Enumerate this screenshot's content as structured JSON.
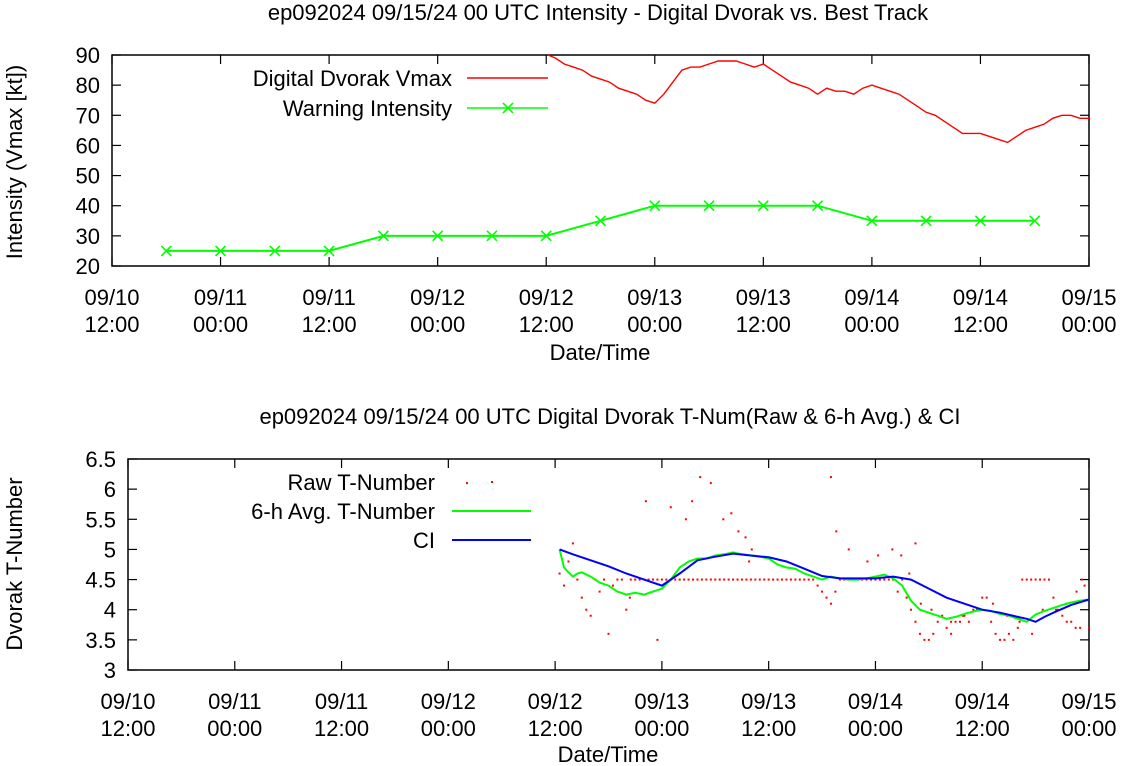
{
  "chart_data": [
    {
      "type": "line",
      "title": "ep092024 09/15/24  00 UTC Intensity - Digital Dvorak vs. Best Track",
      "xlabel": "Date/Time",
      "ylabel": "Intensity (Vmax [kt])",
      "xlim": [
        0,
        108
      ],
      "ylim": [
        20,
        90
      ],
      "x_unit": "hours since 09/10 12:00",
      "xticks": [
        {
          "x": 0,
          "l1": "09/10",
          "l2": "12:00"
        },
        {
          "x": 12,
          "l1": "09/11",
          "l2": "00:00"
        },
        {
          "x": 24,
          "l1": "09/11",
          "l2": "12:00"
        },
        {
          "x": 36,
          "l1": "09/12",
          "l2": "00:00"
        },
        {
          "x": 48,
          "l1": "09/12",
          "l2": "12:00"
        },
        {
          "x": 60,
          "l1": "09/13",
          "l2": "00:00"
        },
        {
          "x": 72,
          "l1": "09/13",
          "l2": "12:00"
        },
        {
          "x": 84,
          "l1": "09/14",
          "l2": "00:00"
        },
        {
          "x": 96,
          "l1": "09/14",
          "l2": "12:00"
        },
        {
          "x": 108,
          "l1": "09/15",
          "l2": "00:00"
        }
      ],
      "yticks": [
        "20",
        "30",
        "40",
        "50",
        "60",
        "70",
        "80",
        "90"
      ],
      "series": [
        {
          "name": "Digital Dvorak Vmax",
          "color": "#ff0000",
          "marker": "none",
          "x": [
            48.2,
            49,
            50,
            51,
            52,
            53,
            54,
            55,
            56,
            57,
            58,
            59,
            60,
            61,
            62,
            63,
            64,
            65,
            66,
            67,
            68,
            69,
            70,
            71,
            72,
            73,
            74,
            75,
            76,
            77,
            78,
            79,
            80,
            81,
            82,
            83,
            84,
            85,
            86,
            87,
            88,
            89,
            90,
            91,
            92,
            93,
            94,
            95,
            96,
            97,
            98,
            99,
            100,
            101,
            102,
            103,
            104,
            105,
            106,
            107,
            108
          ],
          "y": [
            90,
            89,
            87,
            86,
            85,
            83,
            82,
            81,
            79,
            78,
            77,
            75,
            74,
            77,
            81,
            85,
            86,
            86,
            87,
            88,
            88,
            88,
            87,
            86,
            87,
            85,
            83,
            81,
            80,
            79,
            77,
            79,
            78,
            78,
            77,
            79,
            80,
            79,
            78,
            77,
            75,
            73,
            71,
            70,
            68,
            66,
            64,
            64,
            64,
            63,
            62,
            61,
            63,
            65,
            66,
            67,
            69,
            70,
            70,
            69,
            69
          ]
        },
        {
          "name": "Warning Intensity",
          "color": "#00ff00",
          "marker": "x",
          "x": [
            6,
            12,
            18,
            24,
            30,
            36,
            42,
            48,
            54,
            60,
            66,
            72,
            78,
            84,
            90,
            96,
            102
          ],
          "y": [
            25,
            25,
            25,
            25,
            30,
            30,
            30,
            30,
            35,
            40,
            40,
            40,
            40,
            35,
            35,
            35,
            35
          ]
        }
      ]
    },
    {
      "type": "line",
      "title": "ep092024 09/15/24  00 UTC Digital Dvorak T-Num(Raw & 6-h Avg.) & CI",
      "xlabel": "Date/Time",
      "ylabel": "Dvorak T-Number",
      "xlim": [
        0,
        108
      ],
      "ylim": [
        3,
        6.5
      ],
      "x_unit": "hours since 09/10 12:00",
      "xticks": [
        {
          "x": 0,
          "l1": "09/10",
          "l2": "12:00"
        },
        {
          "x": 12,
          "l1": "09/11",
          "l2": "00:00"
        },
        {
          "x": 24,
          "l1": "09/11",
          "l2": "12:00"
        },
        {
          "x": 36,
          "l1": "09/12",
          "l2": "00:00"
        },
        {
          "x": 48,
          "l1": "09/12",
          "l2": "12:00"
        },
        {
          "x": 60,
          "l1": "09/13",
          "l2": "00:00"
        },
        {
          "x": 72,
          "l1": "09/13",
          "l2": "12:00"
        },
        {
          "x": 84,
          "l1": "09/14",
          "l2": "00:00"
        },
        {
          "x": 96,
          "l1": "09/14",
          "l2": "12:00"
        },
        {
          "x": 108,
          "l1": "09/15",
          "l2": "00:00"
        }
      ],
      "yticks": [
        "3",
        "3.5",
        "4",
        "4.5",
        "5",
        "5.5",
        "6",
        "6.5"
      ],
      "series": [
        {
          "name": "Raw T-Number",
          "color": "#ff0000",
          "marker": "dot",
          "x": [
            48.5,
            49,
            49.5,
            50,
            50.5,
            51,
            51.5,
            52,
            52.5,
            53,
            53.5,
            54,
            54.5,
            55,
            55.5,
            56,
            56.5,
            57,
            57.5,
            58,
            58.5,
            59,
            59.5,
            60,
            60.5,
            61,
            61.5,
            62,
            62.5,
            63,
            63.5,
            64,
            64.5,
            65,
            65.5,
            66,
            66.5,
            67,
            67.5,
            68,
            68.5,
            69,
            69.5,
            70,
            70.5,
            71,
            71.5,
            72,
            72.5,
            73,
            73.5,
            74,
            74.5,
            75,
            75.5,
            76,
            76.5,
            77,
            77.5,
            78,
            78.5,
            79,
            79.5,
            80,
            80.5,
            81,
            81.5,
            82,
            82.5,
            83,
            83.5,
            84,
            84.5,
            85,
            85.5,
            86,
            86.5,
            87,
            87.5,
            88,
            88.5,
            89,
            89.5,
            90,
            90.5,
            91,
            91.5,
            92,
            92.5,
            93,
            93.5,
            94,
            94.5,
            95,
            95.5,
            96,
            96.5,
            97,
            97.5,
            98,
            98.5,
            99,
            99.5,
            100,
            100.5,
            101,
            101.5,
            102,
            102.5,
            103,
            103.5,
            104,
            104.5,
            105,
            105.5,
            106,
            106.5,
            107,
            107.5,
            108,
            56.4,
            58.2,
            61,
            62.7,
            63.4,
            64.3,
            65.5,
            66.9,
            67.8,
            68.6,
            69.4,
            70.1,
            79,
            79.6,
            81,
            83.1,
            84.3,
            85.9,
            86.9,
            87.8,
            89.1,
            90.3,
            92.5,
            93.8,
            95.4,
            97.2,
            98.8,
            99.4,
            100.2,
            101.6,
            102.8,
            104.3,
            105.5,
            106.6,
            107.2,
            38.1,
            59.5,
            69.8,
            88.5
          ],
          "y": [
            4.6,
            4.4,
            4.8,
            5.1,
            4.5,
            4.2,
            4.0,
            3.9,
            4.5,
            4.3,
            4.5,
            3.6,
            4.4,
            4.5,
            4.5,
            4.0,
            4.5,
            4.5,
            4.5,
            4.5,
            4.5,
            4.5,
            4.5,
            4.5,
            4.5,
            4.5,
            4.5,
            4.5,
            4.5,
            4.5,
            4.5,
            4.5,
            4.5,
            4.5,
            4.5,
            4.5,
            4.5,
            4.5,
            4.5,
            4.5,
            4.5,
            4.5,
            4.5,
            4.5,
            4.5,
            4.5,
            4.5,
            4.5,
            4.5,
            4.5,
            4.5,
            4.5,
            4.5,
            4.5,
            4.5,
            4.5,
            4.5,
            4.5,
            4.4,
            4.3,
            4.2,
            4.1,
            4.3,
            4.5,
            4.5,
            4.5,
            4.5,
            4.5,
            4.5,
            4.5,
            4.5,
            4.5,
            4.5,
            4.5,
            4.5,
            4.5,
            4.3,
            4.5,
            4.2,
            4.0,
            3.8,
            3.6,
            3.5,
            3.5,
            3.6,
            3.8,
            3.9,
            3.7,
            3.6,
            3.8,
            3.8,
            3.9,
            3.8,
            4.0,
            4.0,
            4.2,
            4.2,
            3.8,
            3.6,
            3.5,
            3.5,
            3.6,
            3.5,
            3.7,
            4.5,
            4.5,
            4.5,
            4.5,
            4.5,
            4.5,
            4.5,
            4.2,
            4.0,
            3.9,
            3.8,
            3.8,
            3.7,
            3.7,
            4.4,
            3.7,
            4.2,
            5.8,
            5.7,
            5.5,
            5.8,
            6.2,
            6.1,
            5.5,
            5.6,
            5.3,
            5.2,
            5.0,
            6.2,
            5.3,
            5.0,
            4.8,
            4.9,
            5.0,
            4.9,
            4.6,
            4.1,
            4.0,
            3.8,
            3.9,
            4.0,
            4.1,
            3.9,
            3.9,
            3.8,
            3.6,
            4.0,
            4.0,
            4.1,
            4.3,
            4.5,
            6.1,
            3.5,
            4.8,
            5.1
          ]
        },
        {
          "name": "6-h Avg. T-Number",
          "color": "#00ff00",
          "marker": "none",
          "x": [
            48.5,
            49,
            49.5,
            50,
            50.5,
            51,
            52,
            53,
            54,
            55,
            56,
            57,
            58,
            59,
            60,
            61,
            62,
            63,
            64,
            65,
            66,
            67,
            68,
            69,
            70,
            71,
            72,
            73,
            74,
            75,
            76,
            77,
            78,
            79,
            80,
            81,
            82,
            83,
            84,
            85,
            86,
            87,
            88,
            89,
            90,
            91,
            92,
            93,
            94,
            95,
            96,
            97,
            98,
            99,
            100,
            101,
            102,
            103,
            104,
            105,
            106,
            107,
            108
          ],
          "y": [
            5.0,
            4.7,
            4.62,
            4.55,
            4.6,
            4.62,
            4.55,
            4.45,
            4.4,
            4.3,
            4.25,
            4.28,
            4.25,
            4.3,
            4.35,
            4.5,
            4.7,
            4.8,
            4.85,
            4.85,
            4.9,
            4.92,
            4.95,
            4.92,
            4.9,
            4.88,
            4.85,
            4.75,
            4.7,
            4.68,
            4.6,
            4.55,
            4.5,
            4.55,
            4.52,
            4.5,
            4.5,
            4.52,
            4.55,
            4.58,
            4.52,
            4.4,
            4.15,
            4.0,
            3.95,
            3.9,
            3.85,
            3.88,
            3.93,
            3.97,
            4.0,
            3.98,
            3.93,
            3.9,
            3.85,
            3.8,
            3.92,
            3.98,
            4.03,
            4.08,
            4.12,
            4.15,
            4.17
          ]
        },
        {
          "name": "CI",
          "color": "#0000ff",
          "marker": "none",
          "x": [
            48.5,
            50,
            52,
            54,
            56,
            58,
            60,
            62,
            64,
            66,
            68,
            70,
            72,
            74,
            76,
            78,
            80,
            82,
            84,
            86,
            88,
            90,
            92,
            94,
            96,
            98,
            100,
            101,
            102,
            103,
            104,
            106,
            108
          ],
          "y": [
            5.0,
            4.92,
            4.82,
            4.72,
            4.6,
            4.5,
            4.4,
            4.6,
            4.82,
            4.88,
            4.93,
            4.9,
            4.87,
            4.8,
            4.68,
            4.56,
            4.52,
            4.52,
            4.52,
            4.55,
            4.5,
            4.35,
            4.2,
            4.1,
            4.0,
            3.95,
            3.88,
            3.85,
            3.8,
            3.88,
            3.95,
            4.08,
            4.17
          ]
        }
      ]
    }
  ]
}
